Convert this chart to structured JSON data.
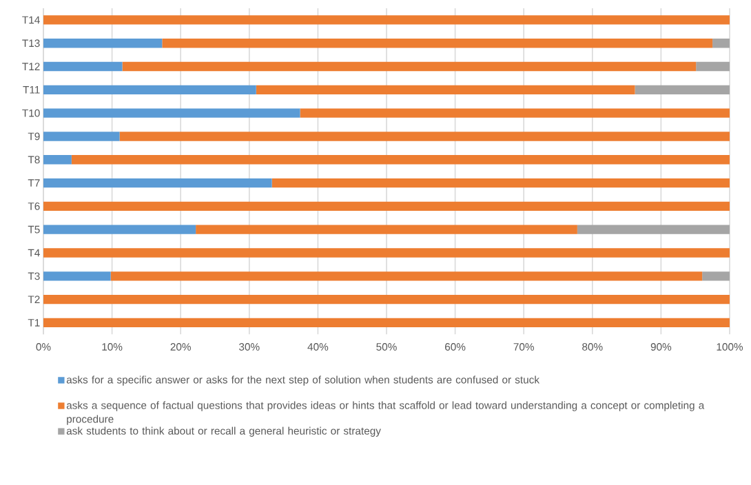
{
  "chart_data": {
    "type": "bar",
    "orientation": "horizontal",
    "stacked": true,
    "categories": [
      "T14",
      "T13",
      "T12",
      "T11",
      "T10",
      "T9",
      "T8",
      "T7",
      "T6",
      "T5",
      "T4",
      "T3",
      "T2",
      "T1"
    ],
    "series": [
      {
        "name": "asks for a specific answer or asks for the next step of solution when students are confused or stuck",
        "color": "#5b9bd5",
        "values": [
          0,
          17.3,
          11.5,
          31.0,
          37.4,
          11.1,
          4.1,
          33.3,
          0,
          22.2,
          0,
          9.8,
          0,
          0
        ]
      },
      {
        "name": "asks a sequence of factual questions that provides ideas or hints that scaffold or lead toward understanding a concept or completing a procedure",
        "color": "#ed7d31",
        "values": [
          100,
          80.2,
          83.6,
          55.2,
          62.6,
          88.9,
          95.9,
          66.7,
          100,
          55.6,
          100,
          86.2,
          100,
          100
        ]
      },
      {
        "name": "ask students to think about or recall a general heuristic or strategy",
        "color": "#a5a5a5",
        "values": [
          0,
          2.5,
          4.9,
          13.8,
          0,
          0,
          0,
          0,
          0,
          22.2,
          0,
          4.0,
          0,
          0
        ]
      }
    ],
    "xlim": [
      0,
      100
    ],
    "xticks": [
      {
        "value": 0,
        "label": "0%"
      },
      {
        "value": 10,
        "label": "10%"
      },
      {
        "value": 20,
        "label": "20%"
      },
      {
        "value": 30,
        "label": "30%"
      },
      {
        "value": 40,
        "label": "40%"
      },
      {
        "value": 50,
        "label": "50%"
      },
      {
        "value": 60,
        "label": "60%"
      },
      {
        "value": 70,
        "label": "70%"
      },
      {
        "value": 80,
        "label": "80%"
      },
      {
        "value": 90,
        "label": "90%"
      },
      {
        "value": 100,
        "label": "100%"
      }
    ],
    "grid": "x",
    "legend": "bottom"
  }
}
